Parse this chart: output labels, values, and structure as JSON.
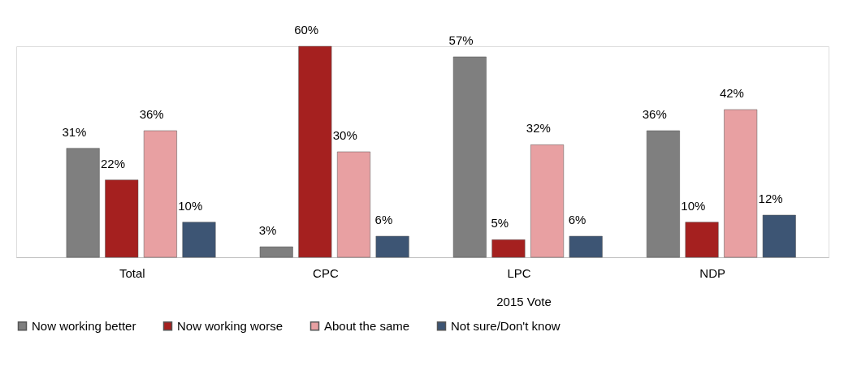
{
  "chart_data": {
    "type": "bar",
    "categories": [
      "Total",
      "CPC",
      "LPC",
      "NDP"
    ],
    "series": [
      {
        "name": "Now working better",
        "color": "#7f7f7f",
        "values": [
          31,
          3,
          57,
          36
        ],
        "value_labels": [
          "31%",
          "3%",
          "57%",
          "36%"
        ]
      },
      {
        "name": "Now working worse",
        "color": "#a5201f",
        "values": [
          22,
          60,
          5,
          10
        ],
        "value_labels": [
          "22%",
          "60%",
          "5%",
          "10%"
        ]
      },
      {
        "name": "About the same",
        "color": "#e8a0a2",
        "values": [
          36,
          30,
          32,
          42
        ],
        "value_labels": [
          "36%",
          "30%",
          "32%",
          "42%"
        ]
      },
      {
        "name": "Not sure/Don't know",
        "color": "#3d5574",
        "values": [
          10,
          6,
          6,
          12
        ],
        "value_labels": [
          "10%",
          "6%",
          "6%",
          "12%"
        ]
      }
    ],
    "annotations": [
      "2015 Vote"
    ],
    "legend": "bottom",
    "grid": false
  }
}
